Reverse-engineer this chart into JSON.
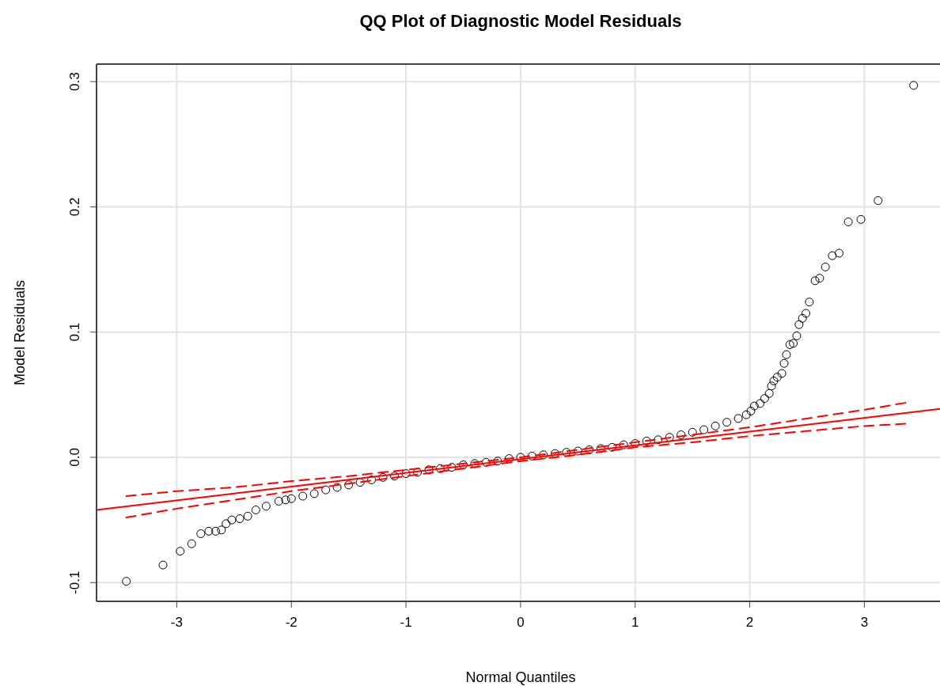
{
  "chart_data": {
    "type": "scatter",
    "title": "QQ Plot of Diagnostic Model Residuals",
    "xlabel": "Normal Quantiles",
    "ylabel": "Model Residuals",
    "xlim": [
      -3.7,
      3.66
    ],
    "ylim": [
      -0.115,
      0.314
    ],
    "xticks": [
      -3,
      -2,
      -1,
      0,
      1,
      2,
      3
    ],
    "yticks": [
      {
        "value": -0.1,
        "label": "-0.1"
      },
      {
        "value": 0,
        "label": "0.0"
      },
      {
        "value": 0.1,
        "label": "0.1"
      },
      {
        "value": 0.2,
        "label": "0.2"
      },
      {
        "value": 0.3,
        "label": "0.3"
      }
    ],
    "grid": true,
    "series": [
      {
        "marker": "circle",
        "color": "#000000",
        "x": [
          -3.44,
          -3.12,
          -2.97,
          -2.87,
          -2.79,
          -2.72,
          -2.66,
          -2.61,
          -2.57,
          -2.52,
          -2.45,
          -2.38,
          -2.31,
          -2.22,
          -2.11,
          -2.05,
          -2.0,
          -1.9,
          -1.8,
          -1.7,
          -1.6,
          -1.5,
          -1.4,
          -1.3,
          -1.2,
          -1.1,
          -1.0,
          -0.9,
          -0.8,
          -0.7,
          -0.6,
          -0.5,
          -0.4,
          -0.3,
          -0.2,
          -0.1,
          0,
          0.1,
          0.2,
          0.3,
          0.4,
          0.5,
          0.6,
          0.7,
          0.8,
          0.9,
          1.0,
          1.1,
          1.2,
          1.3,
          1.4,
          1.5,
          1.6,
          1.7,
          1.8,
          1.9,
          1.97,
          2.01,
          2.04,
          2.09,
          2.13,
          2.17,
          2.19,
          2.21,
          2.24,
          2.28,
          2.3,
          2.32,
          2.35,
          2.38,
          2.41,
          2.43,
          2.46,
          2.49,
          2.52,
          2.57,
          2.61,
          2.66,
          2.72,
          2.78,
          2.86,
          2.97,
          3.12,
          3.43
        ],
        "values": [
          -0.099,
          -0.086,
          -0.075,
          -0.069,
          -0.061,
          -0.059,
          -0.059,
          -0.058,
          -0.053,
          -0.05,
          -0.049,
          -0.047,
          -0.042,
          -0.039,
          -0.035,
          -0.034,
          -0.033,
          -0.031,
          -0.029,
          -0.026,
          -0.024,
          -0.022,
          -0.02,
          -0.018,
          -0.016,
          -0.015,
          -0.013,
          -0.012,
          -0.01,
          -0.009,
          -0.008,
          -0.006,
          -0.005,
          -0.004,
          -0.003,
          -0.001,
          0,
          0.001,
          0.002,
          0.003,
          0.004,
          0.005,
          0.006,
          0.007,
          0.008,
          0.01,
          0.011,
          0.013,
          0.014,
          0.016,
          0.018,
          0.02,
          0.022,
          0.025,
          0.028,
          0.031,
          0.034,
          0.037,
          0.041,
          0.043,
          0.047,
          0.051,
          0.057,
          0.061,
          0.064,
          0.067,
          0.075,
          0.082,
          0.09,
          0.091,
          0.097,
          0.106,
          0.111,
          0.115,
          0.124,
          0.141,
          0.143,
          0.152,
          0.161,
          0.163,
          0.188,
          0.19,
          0.205,
          0.297
        ]
      },
      {
        "type": "line",
        "color": "#ff0000",
        "line_style": "solid",
        "x": [
          -3.7,
          3.66
        ],
        "values": [
          -0.042,
          0.0387
        ]
      },
      {
        "type": "line",
        "color": "#ff0000",
        "line_style": "dashed",
        "x": [
          -3.44,
          -3,
          -2.5,
          -2,
          -1.5,
          -1,
          -0.5,
          0,
          0.5,
          1,
          1.5,
          2,
          2.5,
          3,
          3.39
        ],
        "values": [
          -0.031,
          -0.027,
          -0.024,
          -0.019,
          -0.015,
          -0.01,
          -0.005,
          0,
          0.006,
          0.012,
          0.018,
          0.024,
          0.031,
          0.038,
          0.044
        ]
      },
      {
        "type": "line",
        "color": "#ff0000",
        "line_style": "dashed",
        "x": [
          -3.44,
          -3,
          -2.5,
          -2,
          -1.5,
          -1,
          -0.5,
          0,
          0.5,
          1,
          1.5,
          2,
          2.5,
          3,
          3.39
        ],
        "values": [
          -0.048,
          -0.041,
          -0.034,
          -0.027,
          -0.021,
          -0.015,
          -0.009,
          -0.003,
          0.002,
          0.008,
          0.012,
          0.017,
          0.021,
          0.025,
          0.027
        ]
      }
    ]
  }
}
